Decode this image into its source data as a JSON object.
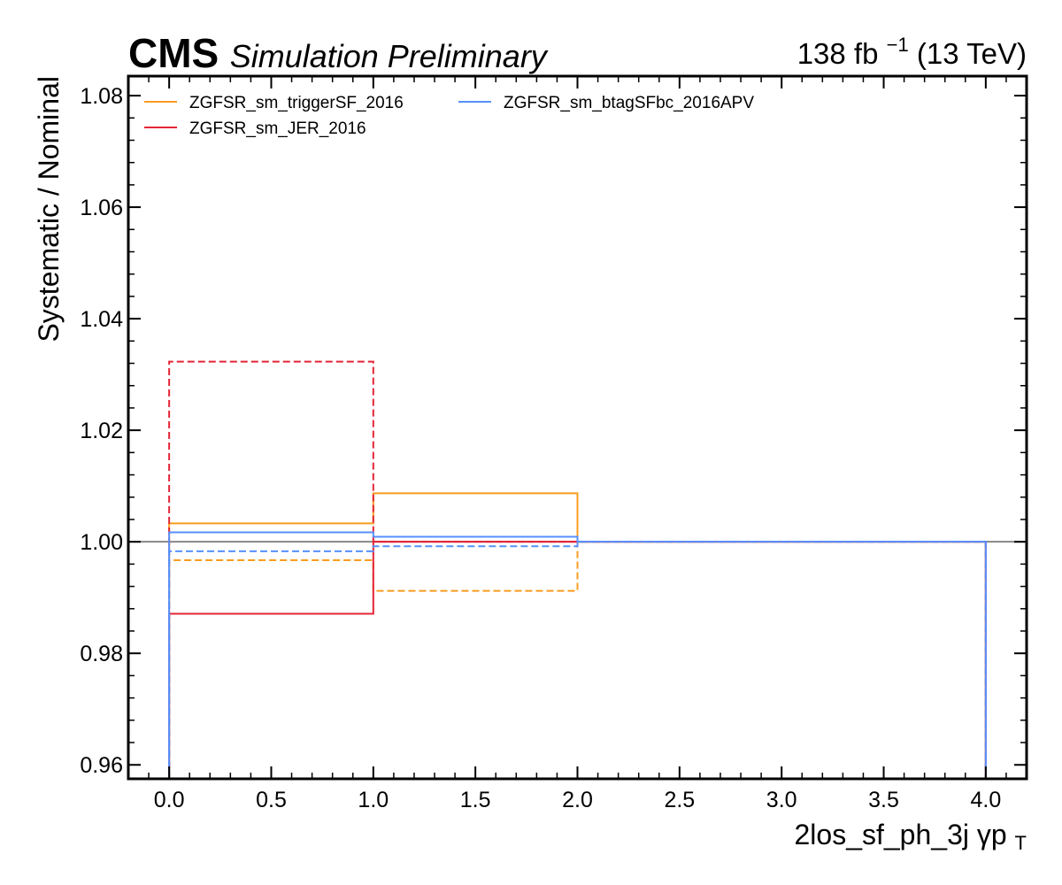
{
  "header": {
    "experiment": "CMS",
    "status": "Simulation Preliminary",
    "lumi": "138 fb",
    "lumi_exp": "−1",
    "energy": " (13 TeV)"
  },
  "chart_data": {
    "type": "line",
    "drawstyle": "steps",
    "xlabel": "2los_sf_ph_3j   γp",
    "xlabel_sub": "T",
    "ylabel": "Systematic / Nominal",
    "xlim": [
      -0.2,
      4.2
    ],
    "ylim": [
      0.9575,
      1.0835
    ],
    "xticks": [
      0.0,
      0.5,
      1.0,
      1.5,
      2.0,
      2.5,
      3.0,
      3.5,
      4.0
    ],
    "xtick_labels": [
      "0.0",
      "0.5",
      "1.0",
      "1.5",
      "2.0",
      "2.5",
      "3.0",
      "3.5",
      "4.0"
    ],
    "yticks": [
      0.96,
      0.98,
      1.0,
      1.02,
      1.04,
      1.06,
      1.08
    ],
    "ytick_labels": [
      "0.96",
      "0.98",
      "1.00",
      "1.02",
      "1.04",
      "1.06",
      "1.08"
    ],
    "bin_edges": [
      0,
      1,
      2,
      3,
      4
    ],
    "reference_line": {
      "y": 1.0,
      "color": "#888888"
    },
    "legend": {
      "placement": "top-left",
      "columns": 2
    },
    "series": [
      {
        "name": "ZGFSR_sm_triggerSF_2016",
        "color": "#f89c20",
        "up": [
          1.0033,
          1.0087,
          1.0,
          1.0
        ],
        "down": [
          0.9967,
          0.9912,
          1.0,
          1.0
        ]
      },
      {
        "name": "ZGFSR_sm_JER_2016",
        "color": "#e42536",
        "up": [
          0.9871,
          1.0,
          1.0,
          1.0
        ],
        "down": [
          1.0323,
          1.0,
          1.0,
          1.0
        ]
      },
      {
        "name": "ZGFSR_sm_btagSFbc_2016APV",
        "color": "#5790fc",
        "up": [
          1.0017,
          1.0009,
          1.0,
          1.0
        ],
        "down": [
          0.9983,
          0.9992,
          1.0,
          1.0
        ]
      }
    ]
  }
}
